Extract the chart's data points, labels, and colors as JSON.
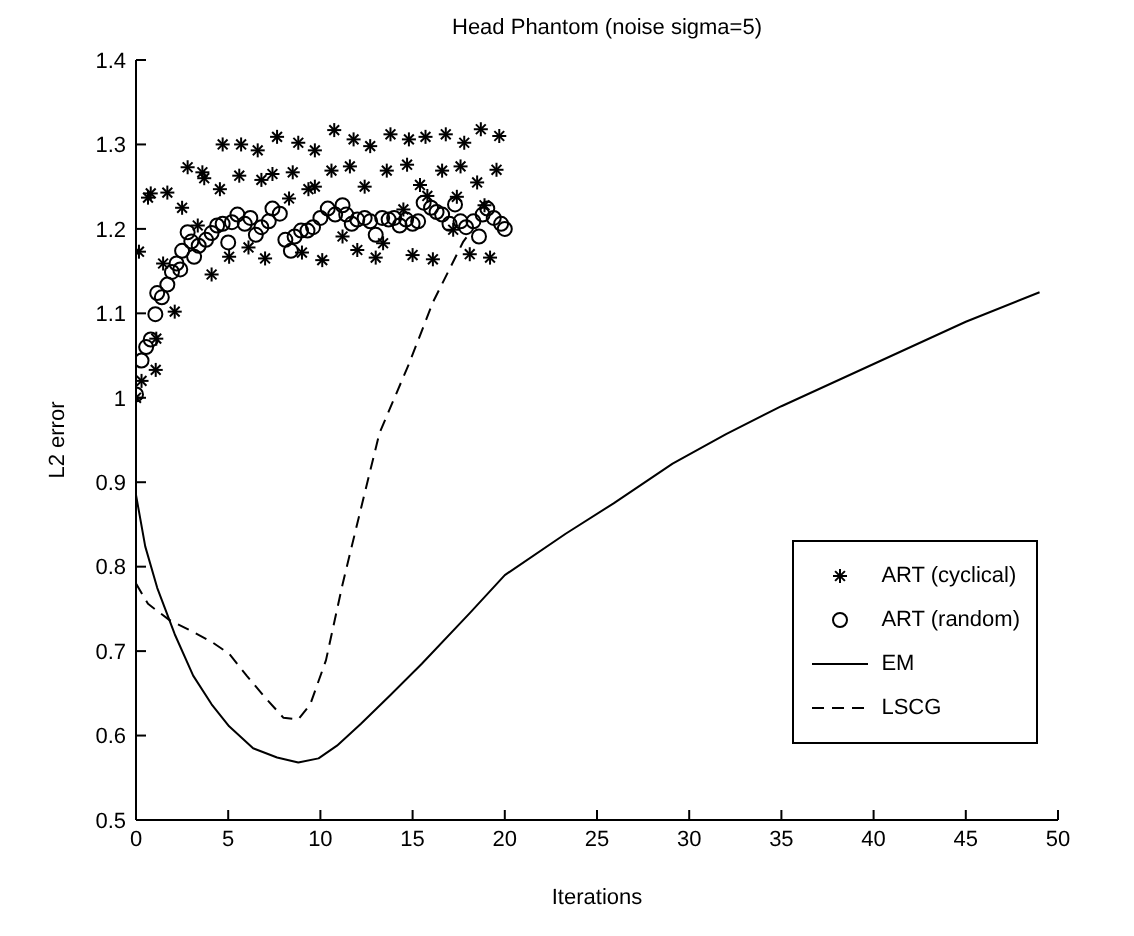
{
  "chart_data": {
    "type": "line",
    "title": "Head Phantom (noise sigma=5)",
    "xlabel": "Iterations",
    "ylabel": "L2 error",
    "xlim": [
      0,
      50
    ],
    "xticks": [
      0,
      5,
      10,
      15,
      20,
      25,
      30,
      35,
      40,
      45,
      50
    ],
    "ylim": [
      0.5,
      1.4
    ],
    "yticks": [
      0.5,
      0.6,
      0.7,
      0.8,
      0.9,
      1,
      1.1,
      1.2,
      1.3,
      1.4
    ],
    "grid": false,
    "legend": "bottom right",
    "series": [
      {
        "name": "ART (cyclical)",
        "type": "scatter",
        "marker": "cross",
        "color": "#000000",
        "x": [
          0,
          0.16,
          0.3,
          0.65,
          0.8,
          1.07,
          1.1,
          1.47,
          1.7,
          2.1,
          2.5,
          2.8,
          3.35,
          3.6,
          3.7,
          4.1,
          4.55,
          4.7,
          5.05,
          5.6,
          5.7,
          6.1,
          6.6,
          6.8,
          7.0,
          7.4,
          7.65,
          8.3,
          8.5,
          8.8,
          9.0,
          9.35,
          9.7,
          9.7,
          10.1,
          10.6,
          10.75,
          11.2,
          11.6,
          11.8,
          12.0,
          12.4,
          12.7,
          13.0,
          13.4,
          13.6,
          13.8,
          14.5,
          14.7,
          14.8,
          15.0,
          15.4,
          15.7,
          15.8,
          16.1,
          16.6,
          16.8,
          17.2,
          17.4,
          17.6,
          17.8,
          18.1,
          18.5,
          18.7,
          18.9,
          19.2,
          19.55,
          19.7
        ],
        "values": [
          1.0,
          1.173,
          1.02,
          1.237,
          1.242,
          1.033,
          1.07,
          1.159,
          1.243,
          1.102,
          1.225,
          1.273,
          1.204,
          1.267,
          1.26,
          1.146,
          1.247,
          1.3,
          1.167,
          1.263,
          1.3,
          1.178,
          1.293,
          1.258,
          1.165,
          1.265,
          1.309,
          1.236,
          1.267,
          1.302,
          1.172,
          1.247,
          1.293,
          1.25,
          1.163,
          1.269,
          1.317,
          1.191,
          1.274,
          1.306,
          1.175,
          1.25,
          1.298,
          1.166,
          1.183,
          1.269,
          1.312,
          1.223,
          1.276,
          1.306,
          1.169,
          1.252,
          1.309,
          1.239,
          1.164,
          1.269,
          1.312,
          1.199,
          1.238,
          1.274,
          1.302,
          1.17,
          1.255,
          1.318,
          1.228,
          1.166,
          1.27,
          1.31
        ]
      },
      {
        "name": "ART (random)",
        "type": "scatter",
        "marker": "circle",
        "color": "#000000",
        "x": [
          0,
          0.3,
          0.55,
          0.8,
          1.05,
          1.15,
          1.4,
          1.7,
          1.95,
          2.2,
          2.4,
          2.5,
          2.8,
          3.0,
          3.15,
          3.4,
          3.8,
          4.1,
          4.4,
          4.7,
          5.0,
          5.2,
          5.5,
          5.9,
          6.2,
          6.5,
          6.8,
          7.2,
          7.4,
          7.8,
          8.1,
          8.4,
          8.6,
          8.95,
          9.3,
          9.6,
          10.0,
          10.4,
          10.8,
          11.2,
          11.4,
          11.7,
          12.0,
          12.4,
          12.7,
          13.0,
          13.35,
          13.7,
          14.0,
          14.3,
          14.65,
          15.0,
          15.3,
          15.6,
          16.0,
          16.3,
          16.6,
          17.0,
          17.3,
          17.6,
          17.9,
          18.3,
          18.6,
          18.8,
          19.05,
          19.4,
          19.8,
          20.0
        ],
        "values": [
          1.004,
          1.044,
          1.06,
          1.069,
          1.099,
          1.124,
          1.119,
          1.134,
          1.149,
          1.159,
          1.152,
          1.174,
          1.196,
          1.185,
          1.167,
          1.18,
          1.187,
          1.195,
          1.204,
          1.206,
          1.184,
          1.208,
          1.217,
          1.206,
          1.213,
          1.193,
          1.202,
          1.209,
          1.224,
          1.218,
          1.187,
          1.174,
          1.191,
          1.198,
          1.198,
          1.202,
          1.213,
          1.224,
          1.217,
          1.228,
          1.217,
          1.206,
          1.211,
          1.213,
          1.209,
          1.193,
          1.213,
          1.211,
          1.213,
          1.204,
          1.211,
          1.206,
          1.209,
          1.231,
          1.225,
          1.22,
          1.217,
          1.206,
          1.229,
          1.209,
          1.202,
          1.209,
          1.191,
          1.217,
          1.224,
          1.213,
          1.206,
          1.2
        ]
      },
      {
        "name": "EM",
        "line_style": "solid",
        "marker": "none",
        "color": "#000000",
        "x": [
          0,
          0.5,
          1.15,
          2.1,
          3.1,
          4.1,
          5.05,
          6.35,
          7.65,
          8.8,
          9.9,
          10.9,
          12.2,
          13.8,
          15.5,
          18.1,
          20,
          23.3,
          25.9,
          29.1,
          32,
          35,
          40,
          45,
          49
        ],
        "values": [
          0.885,
          0.824,
          0.775,
          0.72,
          0.671,
          0.637,
          0.611,
          0.585,
          0.574,
          0.568,
          0.573,
          0.588,
          0.614,
          0.648,
          0.685,
          0.745,
          0.79,
          0.839,
          0.875,
          0.922,
          0.957,
          0.99,
          1.04,
          1.09,
          1.125
        ]
      },
      {
        "name": "LSCG",
        "line_style": "dashed",
        "marker": "none",
        "color": "#000000",
        "x": [
          0,
          0.65,
          1.8,
          2.8,
          4.1,
          5.05,
          6.0,
          7.0,
          8.0,
          8.8,
          9.45,
          10.3,
          11.2,
          12.2,
          13.2,
          14.8,
          16.1,
          17.75,
          18.1
        ],
        "values": [
          0.78,
          0.756,
          0.737,
          0.726,
          0.711,
          0.697,
          0.671,
          0.645,
          0.621,
          0.619,
          0.637,
          0.689,
          0.779,
          0.869,
          0.958,
          1.04,
          1.113,
          1.185,
          1.195
        ]
      }
    ]
  }
}
